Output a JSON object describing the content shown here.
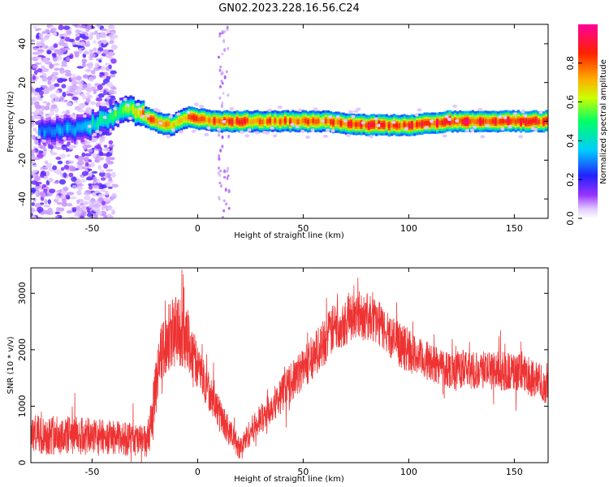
{
  "title": "GN02.2023.228.16.56.C24",
  "chart_data": [
    {
      "type": "heatmap",
      "title": "GN02.2023.228.16.56.C24",
      "xlabel": "Height of straight line (km)",
      "ylabel": "Frequency (Hz)",
      "xlim": [
        -79,
        166
      ],
      "ylim": [
        -50,
        50
      ],
      "xticks": [
        -50,
        0,
        50,
        100,
        150
      ],
      "yticks": [
        -40,
        -20,
        0,
        20,
        40
      ],
      "colorbar": {
        "label": "Normalized spectral amplitude",
        "range": [
          0,
          1
        ],
        "ticks": [
          "0.0",
          "0.2",
          "0.4",
          "0.6",
          "0.8"
        ],
        "colormap": "rainbow"
      },
      "ridge": {
        "description_points": [
          {
            "x": -70,
            "f": -5,
            "level": 0.3
          },
          {
            "x": -55,
            "f": -4,
            "level": 0.35
          },
          {
            "x": -42,
            "f": 2,
            "level": 0.5
          },
          {
            "x": -33,
            "f": 6,
            "level": 0.6
          },
          {
            "x": -26,
            "f": 3,
            "level": 0.75
          },
          {
            "x": -18,
            "f": -1,
            "level": 0.8
          },
          {
            "x": -12,
            "f": -2,
            "level": 0.7
          },
          {
            "x": -5,
            "f": 2,
            "level": 0.8
          },
          {
            "x": 10,
            "f": 0,
            "level": 0.85
          },
          {
            "x": 30,
            "f": 0,
            "level": 0.8
          },
          {
            "x": 60,
            "f": 0,
            "level": 0.8
          },
          {
            "x": 80,
            "f": -2,
            "level": 0.85
          },
          {
            "x": 100,
            "f": -2,
            "level": 0.85
          },
          {
            "x": 120,
            "f": 0,
            "level": 0.9
          },
          {
            "x": 165,
            "f": 0,
            "level": 0.85
          }
        ]
      }
    },
    {
      "type": "line",
      "xlabel": "Height of straight line (km)",
      "ylabel": "SNR (10 * v/v)",
      "xlim": [
        -79,
        166
      ],
      "ylim": [
        0,
        3450
      ],
      "xticks": [
        -50,
        0,
        50,
        100,
        150
      ],
      "yticks": [
        0,
        1000,
        2000,
        3000
      ],
      "color": "#ee3333",
      "series": [
        {
          "envelope_x": [
            -79,
            -60,
            -40,
            -30,
            -24,
            -21,
            -18,
            -12,
            -8,
            -5,
            0,
            5,
            10,
            15,
            20,
            25,
            35,
            45,
            55,
            65,
            75,
            85,
            95,
            105,
            120,
            135,
            150,
            160,
            166
          ],
          "envelope_mid": [
            500,
            480,
            450,
            400,
            350,
            900,
            1900,
            2300,
            2400,
            2200,
            1700,
            1300,
            900,
            550,
            250,
            550,
            1000,
            1450,
            1900,
            2400,
            2650,
            2500,
            2100,
            1850,
            1650,
            1650,
            1600,
            1500,
            1300
          ],
          "envelope_amp": [
            350,
            350,
            300,
            300,
            300,
            500,
            500,
            600,
            700,
            550,
            400,
            350,
            300,
            250,
            200,
            250,
            300,
            350,
            400,
            450,
            450,
            400,
            400,
            350,
            350,
            350,
            350,
            350,
            300
          ]
        }
      ]
    }
  ]
}
